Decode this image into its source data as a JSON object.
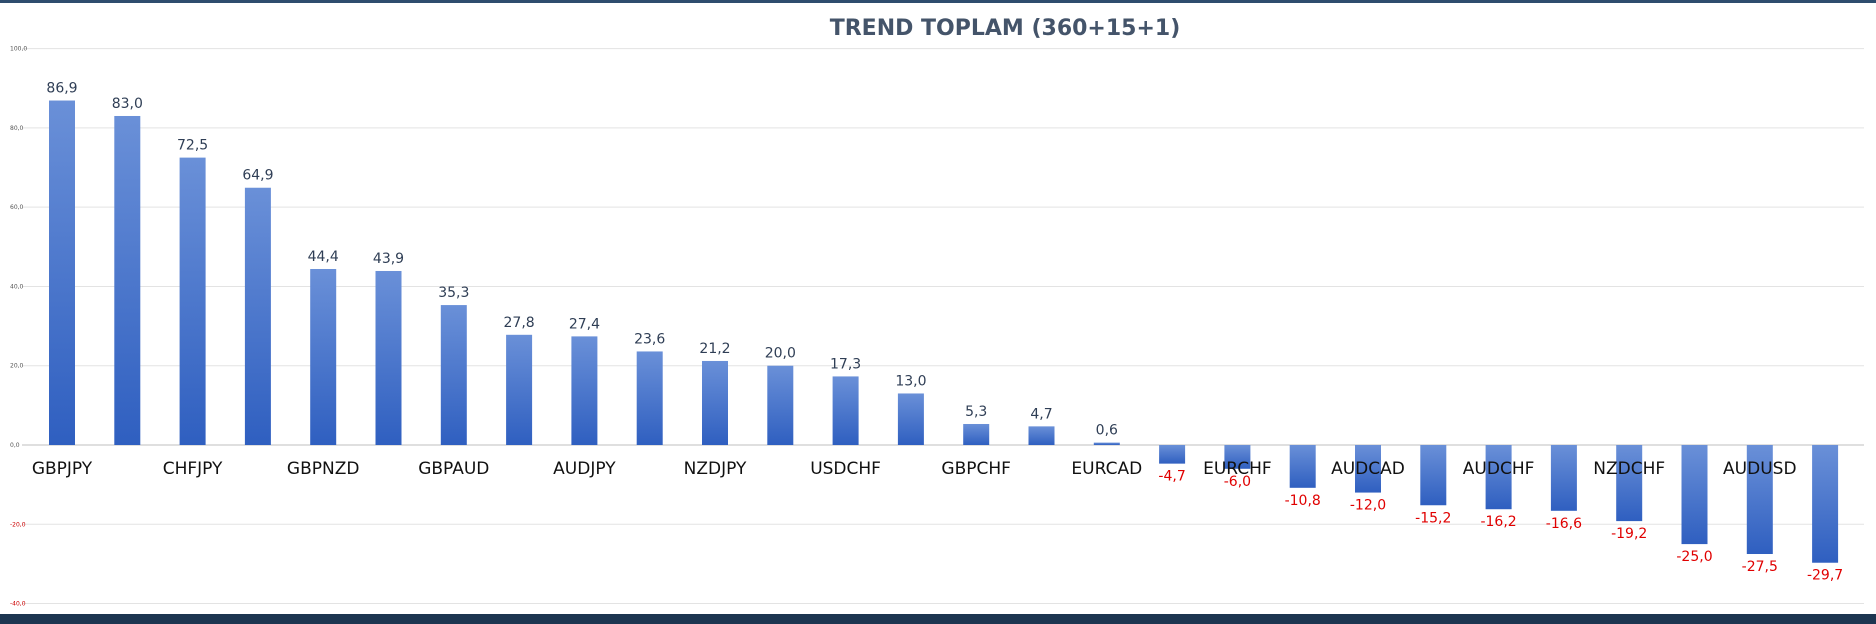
{
  "chart_data": {
    "type": "bar",
    "title": "TREND TOPLAM (360+15+1)",
    "xlabel": "",
    "ylabel": "",
    "ylim": [
      -40,
      100
    ],
    "yticks": [
      "100,0",
      "80,0",
      "60,0",
      "40,0",
      "20,0",
      "0,0",
      "-20,0",
      "-40,0"
    ],
    "ytick_values": [
      100,
      80,
      60,
      40,
      20,
      0,
      -20,
      -40
    ],
    "grid": true,
    "bar_color": "#4472c4",
    "negative_label_color": "#e00000",
    "category_labels_shown": [
      {
        "index": 0,
        "label": "GBPJPY"
      },
      {
        "index": 2,
        "label": "CHFJPY"
      },
      {
        "index": 4,
        "label": "GBPNZD"
      },
      {
        "index": 6,
        "label": "GBPAUD"
      },
      {
        "index": 8,
        "label": "AUDJPY"
      },
      {
        "index": 10,
        "label": "NZDJPY"
      },
      {
        "index": 12,
        "label": "USDCHF"
      },
      {
        "index": 14,
        "label": "GBPCHF"
      },
      {
        "index": 16,
        "label": "EURCAD"
      },
      {
        "index": 18,
        "label": "EURCHF"
      },
      {
        "index": 20,
        "label": "AUDCAD"
      },
      {
        "index": 22,
        "label": "AUDCHF"
      },
      {
        "index": 24,
        "label": "NZDCHF"
      },
      {
        "index": 26,
        "label": "AUDUSD"
      }
    ],
    "values": [
      86.9,
      83.0,
      72.5,
      64.9,
      44.4,
      43.9,
      35.3,
      27.8,
      27.4,
      23.6,
      21.2,
      20.0,
      17.3,
      13.0,
      5.3,
      4.7,
      0.6,
      -4.7,
      -6.0,
      -10.8,
      -12.0,
      -15.2,
      -16.2,
      -16.6,
      -19.2,
      -25.0,
      -27.5,
      -29.7
    ],
    "data_labels": [
      "86,9",
      "83,0",
      "72,5",
      "64,9",
      "44,4",
      "43,9",
      "35,3",
      "27,8",
      "27,4",
      "23,6",
      "21,2",
      "20,0",
      "17,3",
      "13,0",
      "5,3",
      "4,7",
      "0,6",
      "-4,7",
      "-6,0",
      "-10,8",
      "-12,0",
      "-15,2",
      "-16,2",
      "-16,6",
      "-19,2",
      "-25,0",
      "-27,5",
      "-29,7"
    ]
  }
}
